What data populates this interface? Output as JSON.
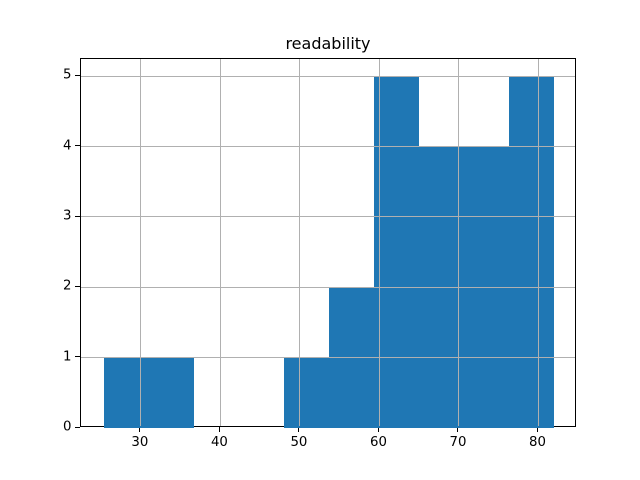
{
  "chart_data": {
    "type": "bar",
    "subtype": "histogram",
    "title": "readability",
    "xlabel": "",
    "ylabel": "",
    "bin_edges": [
      25.3,
      30.97,
      36.64,
      42.31,
      47.98,
      53.65,
      59.32,
      64.99,
      70.66,
      76.33,
      82.0
    ],
    "values": [
      1,
      1,
      0,
      0,
      1,
      2,
      5,
      4,
      4,
      5
    ],
    "xlim": [
      22.47,
      84.84
    ],
    "ylim": [
      0,
      5.25
    ],
    "xticks": [
      30,
      40,
      50,
      60,
      70,
      80
    ],
    "yticks": [
      0,
      1,
      2,
      3,
      4,
      5
    ],
    "grid": true,
    "grid_above_bars": true,
    "legend": null,
    "colors": {
      "bar": "#1f77b4",
      "grid": "#b0b0b0",
      "spine": "#000000",
      "text": "#000000",
      "background": "#ffffff"
    }
  }
}
